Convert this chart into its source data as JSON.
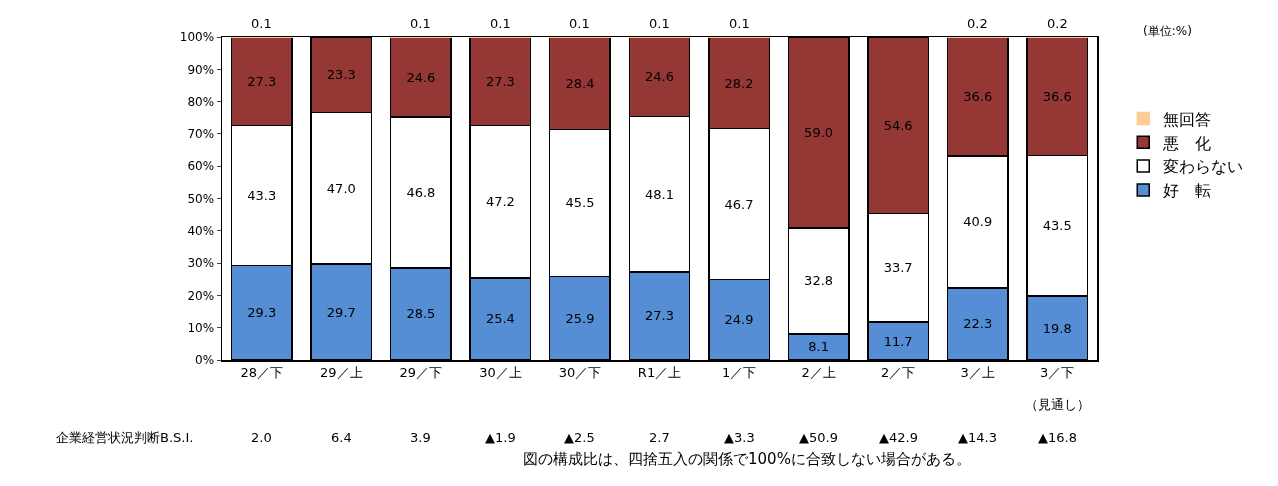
{
  "chart_data": {
    "type": "bar",
    "stacked": true,
    "categories": [
      "28／下",
      "29／上",
      "29／下",
      "30／上",
      "30／下",
      "R1／上",
      "1／下",
      "2／上",
      "2／下",
      "3／上",
      "3／下"
    ],
    "series": [
      {
        "name": "好　転",
        "color": "#558ed5",
        "values": [
          29.3,
          29.7,
          28.5,
          25.4,
          25.9,
          27.3,
          24.9,
          8.1,
          11.7,
          22.3,
          19.8
        ],
        "value_labels": [
          "29.3",
          "29.7",
          "28.5",
          "25.4",
          "25.9",
          "27.3",
          "24.9",
          "8.1",
          "11.7",
          "22.3",
          "19.8"
        ]
      },
      {
        "name": "変わらない",
        "color": "#ffffff",
        "values": [
          43.3,
          47.0,
          46.8,
          47.2,
          45.5,
          48.1,
          46.7,
          32.8,
          33.7,
          40.9,
          43.5
        ],
        "value_labels": [
          "43.3",
          "47.0",
          "46.8",
          "47.2",
          "45.5",
          "48.1",
          "46.7",
          "32.8",
          "33.7",
          "40.9",
          "43.5"
        ]
      },
      {
        "name": "悪　化",
        "color": "#953735",
        "values": [
          27.3,
          23.3,
          24.6,
          27.3,
          28.4,
          24.6,
          28.2,
          59.0,
          54.6,
          36.6,
          36.6
        ],
        "value_labels": [
          "27.3",
          "23.3",
          "24.6",
          "27.3",
          "28.4",
          "24.6",
          "28.2",
          "59.0",
          "54.6",
          "36.6",
          "36.6"
        ]
      },
      {
        "name": "無回答",
        "color": "#ffcc99",
        "values": [
          0.1,
          null,
          0.1,
          0.1,
          0.1,
          0.1,
          0.1,
          null,
          null,
          0.2,
          0.2
        ],
        "value_labels": [
          "0.1",
          null,
          "0.1",
          "0.1",
          "0.1",
          "0.1",
          "0.1",
          null,
          null,
          "0.2",
          "0.2"
        ]
      }
    ],
    "ylim": [
      0,
      100
    ],
    "yticks": [
      {
        "value": 0,
        "label": "0%"
      },
      {
        "value": 10,
        "label": "10%"
      },
      {
        "value": 20,
        "label": "20%"
      },
      {
        "value": 30,
        "label": "30%"
      },
      {
        "value": 40,
        "label": "40%"
      },
      {
        "value": 50,
        "label": "50%"
      },
      {
        "value": 60,
        "label": "60%"
      },
      {
        "value": 70,
        "label": "70%"
      },
      {
        "value": 80,
        "label": "80%"
      },
      {
        "value": 90,
        "label": "90%"
      },
      {
        "value": 100,
        "label": "100%"
      }
    ],
    "grid": false,
    "legend": "right",
    "annotations": [
      "(単位:%)",
      "（見通し）",
      "企業経営状況判断B.S.I.",
      "2.0",
      "6.4",
      "3.9",
      "▲1.9",
      "▲2.5",
      "2.7",
      "▲3.3",
      "▲50.9",
      "▲42.9",
      "▲14.3",
      "▲16.8",
      "図の構成比は、四捨五入の関係で100%に合致しない場合がある。"
    ]
  }
}
